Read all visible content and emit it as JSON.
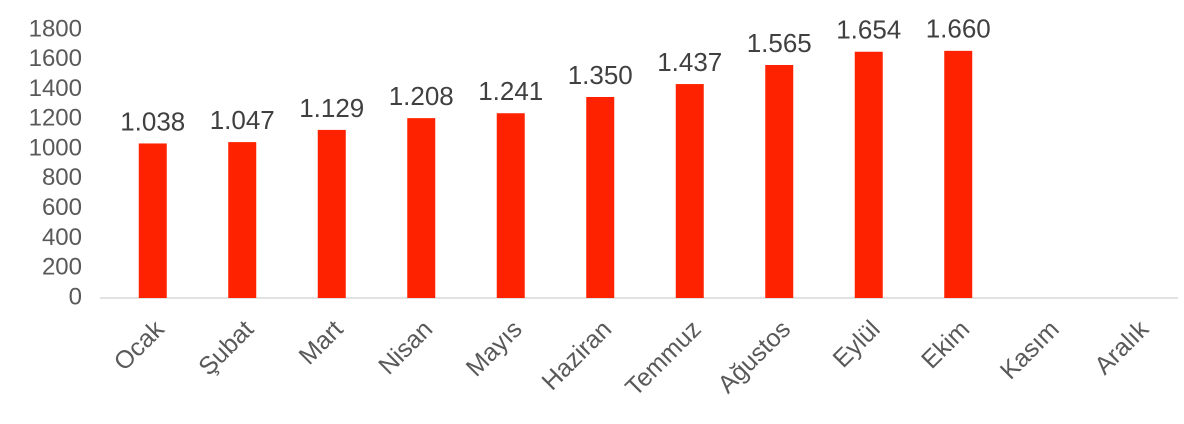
{
  "chart_data": {
    "type": "bar",
    "categories": [
      "Ocak",
      "Şubat",
      "Mart",
      "Nisan",
      "Mayıs",
      "Haziran",
      "Temmuz",
      "Ağustos",
      "Eylül",
      "Ekim",
      "Kasım",
      "Aralık"
    ],
    "values": [
      1038,
      1047,
      1129,
      1208,
      1241,
      1350,
      1437,
      1565,
      1654,
      1660,
      null,
      null
    ],
    "value_labels": [
      "1.038",
      "1.047",
      "1.129",
      "1.208",
      "1.241",
      "1.350",
      "1.437",
      "1.565",
      "1.654",
      "1.660",
      null,
      null
    ],
    "color": "#ff2200",
    "ylim": [
      0,
      1800
    ],
    "yticks": [
      0,
      200,
      400,
      600,
      800,
      1000,
      1200,
      1400,
      1600,
      1800
    ],
    "grid": false
  }
}
